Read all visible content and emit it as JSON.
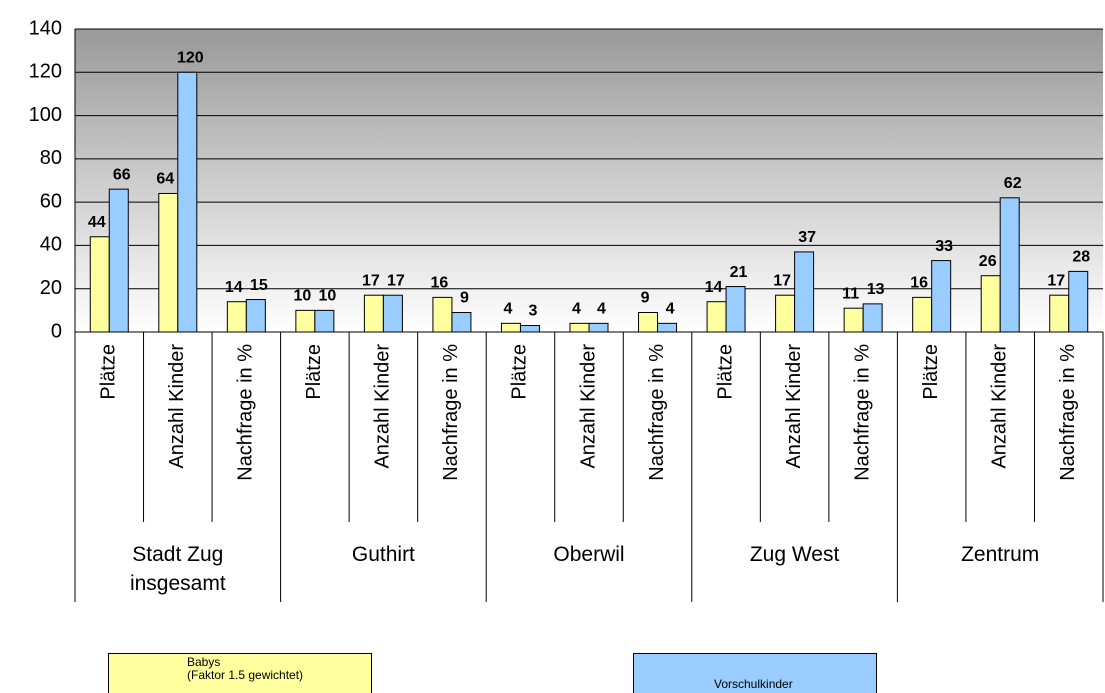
{
  "chart_data": {
    "type": "bar",
    "categories": [
      "Plätze",
      "Anzahl Kinder",
      "Nachfrage in %",
      "Plätze",
      "Anzahl Kinder",
      "Nachfrage in %",
      "Plätze",
      "Anzahl Kinder",
      "Nachfrage in %",
      "Plätze",
      "Anzahl Kinder",
      "Nachfrage in %",
      "Plätze",
      "Anzahl Kinder",
      "Nachfrage in %"
    ],
    "groups": [
      "Stadt Zug insgesamt",
      "Guthirt",
      "Oberwil",
      "Zug West",
      "Zentrum"
    ],
    "series": [
      {
        "name": "Babys\n(Faktor 1.5 gewichtet)",
        "color": "#ffffa0",
        "values": [
          44,
          64,
          14,
          10,
          17,
          16,
          4,
          4,
          9,
          14,
          17,
          11,
          16,
          26,
          17
        ]
      },
      {
        "name": "Vorschulkinder",
        "color": "#99ccff",
        "values": [
          66,
          120,
          15,
          10,
          17,
          9,
          3,
          4,
          4,
          21,
          37,
          13,
          33,
          62,
          28
        ]
      }
    ],
    "ylim": [
      0,
      140
    ],
    "yticks": [
      0,
      20,
      40,
      60,
      80,
      100,
      120,
      140
    ],
    "grid": true
  }
}
